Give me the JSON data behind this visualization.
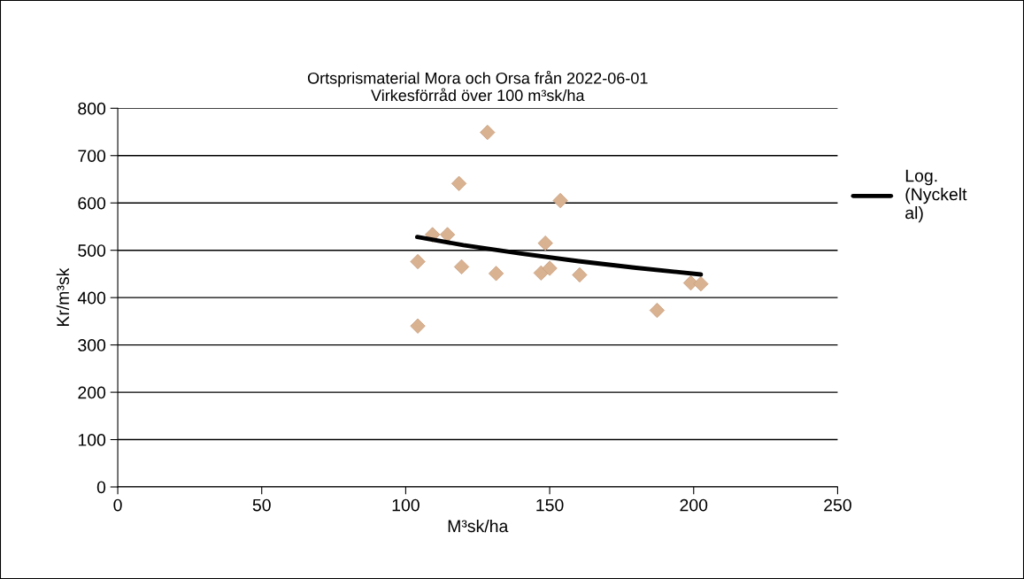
{
  "chart_data": {
    "type": "scatter",
    "title": "Ortsprismaterial Mora och Orsa från 2022-06-01\nVirkesförråd över 100 m³sk/ha",
    "xlabel": "M³sk/ha",
    "ylabel": "Kr/m³sk",
    "xlim": [
      0,
      250
    ],
    "xticks": [
      0,
      50,
      100,
      150,
      200,
      250
    ],
    "ylim": [
      0,
      800
    ],
    "yticks": [
      0,
      100,
      200,
      300,
      400,
      500,
      600,
      700,
      800
    ],
    "grid": "y",
    "legend": "right",
    "series": [
      {
        "marker": "diamond",
        "color": "#d9b291",
        "x": [
          128.4,
          118.5,
          153.7,
          109.3,
          114.5,
          148.5,
          104.2,
          119.4,
          131.4,
          147,
          150,
          160.4,
          199,
          202.5,
          187.3,
          104.2
        ],
        "values": [
          749,
          641,
          605,
          533,
          533,
          515,
          476,
          465,
          451,
          452,
          462,
          448,
          431,
          429,
          373,
          340
        ]
      },
      {
        "type": "line",
        "name": "Log.\n(Nyckelt\nal)",
        "color": "#000000",
        "x": [
          104,
          120,
          140,
          160,
          180,
          202.5
        ],
        "values": [
          528,
          511,
          493,
          477,
          463,
          449
        ]
      }
    ]
  }
}
